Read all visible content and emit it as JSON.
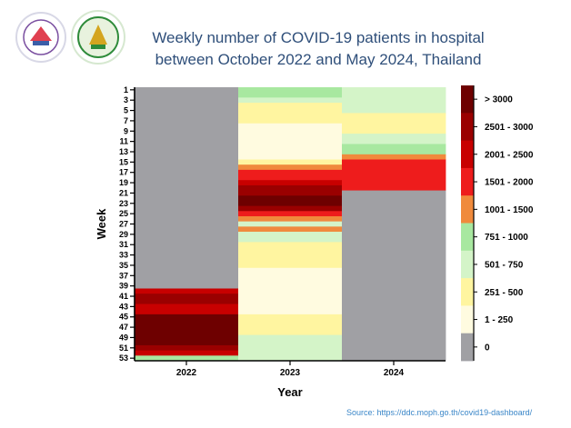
{
  "header": {
    "title_line1": "Weekly number of COVID-19 patients in hospital",
    "title_line2": "between October 2022 and May 2024, Thailand"
  },
  "logos": [
    {
      "name": "department-logo",
      "color": "#c0392b"
    },
    {
      "name": "university-logo",
      "color": "#2e8b3a"
    }
  ],
  "source_text": "Source: https://ddc.moph.go.th/covid19-dashboard/",
  "chart_data": {
    "type": "heatmap",
    "title": "",
    "xlabel": "Year",
    "ylabel": "Week",
    "x_categories": [
      "2022",
      "2023",
      "2024"
    ],
    "y_tick_labels": [
      "1",
      "3",
      "5",
      "7",
      "9",
      "11",
      "13",
      "15",
      "17",
      "19",
      "21",
      "23",
      "25",
      "27",
      "29",
      "31",
      "33",
      "35",
      "37",
      "39",
      "41",
      "43",
      "45",
      "47",
      "49",
      "51",
      "53"
    ],
    "weeks": 53,
    "legend": {
      "placement": "right",
      "bins": [
        {
          "label": "> 3000",
          "color": "#6e0000"
        },
        {
          "label": "2501 - 3000",
          "color": "#9a0000"
        },
        {
          "label": "2001 - 2500",
          "color": "#c80000"
        },
        {
          "label": "1501 - 2000",
          "color": "#ee1c1c"
        },
        {
          "label": "1001 - 1500",
          "color": "#f08a3c"
        },
        {
          "label": "751 - 1000",
          "color": "#a8e8a0"
        },
        {
          "label": "501 - 750",
          "color": "#d4f4c8"
        },
        {
          "label": "251 - 500",
          "color": "#fff5a0"
        },
        {
          "label": "1 - 250",
          "color": "#fffbe0"
        },
        {
          "label": "0",
          "color": "#a0a0a4"
        }
      ]
    },
    "series": [
      {
        "x": "2022",
        "bins": [
          {
            "from": 1,
            "to": 39,
            "bin": "0"
          },
          {
            "from": 40,
            "to": 40,
            "bin": "2001 - 2500"
          },
          {
            "from": 41,
            "to": 42,
            "bin": "2501 - 3000"
          },
          {
            "from": 43,
            "to": 44,
            "bin": "2001 - 2500"
          },
          {
            "from": 45,
            "to": 50,
            "bin": "> 3000"
          },
          {
            "from": 51,
            "to": 51,
            "bin": "2501 - 3000"
          },
          {
            "from": 52,
            "to": 52,
            "bin": "2001 - 2500"
          },
          {
            "from": 53,
            "to": 53,
            "bin": "751 - 1000"
          }
        ]
      },
      {
        "x": "2023",
        "bins": [
          {
            "from": 1,
            "to": 2,
            "bin": "751 - 1000"
          },
          {
            "from": 3,
            "to": 3,
            "bin": "501 - 750"
          },
          {
            "from": 4,
            "to": 7,
            "bin": "251 - 500"
          },
          {
            "from": 8,
            "to": 14,
            "bin": "1 - 250"
          },
          {
            "from": 15,
            "to": 15,
            "bin": "251 - 500"
          },
          {
            "from": 16,
            "to": 16,
            "bin": "1001 - 1500"
          },
          {
            "from": 17,
            "to": 18,
            "bin": "1501 - 2000"
          },
          {
            "from": 19,
            "to": 19,
            "bin": "2001 - 2500"
          },
          {
            "from": 20,
            "to": 21,
            "bin": "2501 - 3000"
          },
          {
            "from": 22,
            "to": 23,
            "bin": "> 3000"
          },
          {
            "from": 24,
            "to": 24,
            "bin": "2501 - 3000"
          },
          {
            "from": 25,
            "to": 25,
            "bin": "1501 - 2000"
          },
          {
            "from": 26,
            "to": 26,
            "bin": "1001 - 1500"
          },
          {
            "from": 27,
            "to": 27,
            "bin": "501 - 750"
          },
          {
            "from": 28,
            "to": 28,
            "bin": "1001 - 1500"
          },
          {
            "from": 29,
            "to": 30,
            "bin": "501 - 750"
          },
          {
            "from": 31,
            "to": 35,
            "bin": "251 - 500"
          },
          {
            "from": 36,
            "to": 44,
            "bin": "1 - 250"
          },
          {
            "from": 45,
            "to": 48,
            "bin": "251 - 500"
          },
          {
            "from": 49,
            "to": 53,
            "bin": "501 - 750"
          }
        ]
      },
      {
        "x": "2024",
        "bins": [
          {
            "from": 1,
            "to": 5,
            "bin": "501 - 750"
          },
          {
            "from": 6,
            "to": 9,
            "bin": "251 - 500"
          },
          {
            "from": 10,
            "to": 11,
            "bin": "501 - 750"
          },
          {
            "from": 12,
            "to": 13,
            "bin": "751 - 1000"
          },
          {
            "from": 14,
            "to": 14,
            "bin": "1001 - 1500"
          },
          {
            "from": 15,
            "to": 20,
            "bin": "1501 - 2000"
          },
          {
            "from": 21,
            "to": 53,
            "bin": "0"
          }
        ]
      }
    ]
  }
}
